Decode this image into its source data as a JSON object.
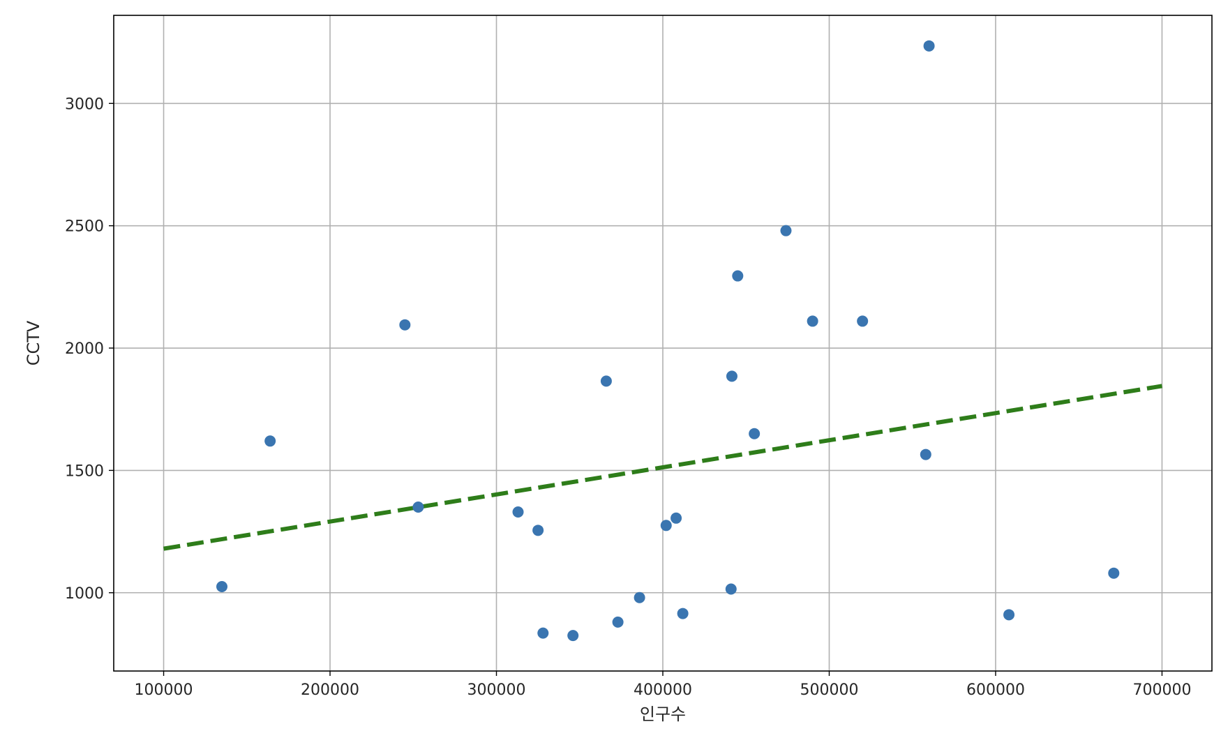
{
  "chart_data": {
    "type": "scatter",
    "title": "",
    "xlabel": "인구수",
    "ylabel": "CCTV",
    "xlim": [
      70000,
      730000
    ],
    "ylim": [
      680,
      3360
    ],
    "xticks": [
      100000,
      200000,
      300000,
      400000,
      500000,
      600000,
      700000
    ],
    "yticks": [
      1000,
      1500,
      2000,
      2500,
      3000
    ],
    "xtick_labels": [
      "100000",
      "200000",
      "300000",
      "400000",
      "500000",
      "600000",
      "700000"
    ],
    "ytick_labels": [
      "1000",
      "1500",
      "2000",
      "2500",
      "3000"
    ],
    "grid": true,
    "legend": false,
    "series": [
      {
        "kind": "scatter",
        "color": "#3a75b0",
        "points": [
          {
            "x": 135000,
            "y": 1025
          },
          {
            "x": 164000,
            "y": 1620
          },
          {
            "x": 245000,
            "y": 2095
          },
          {
            "x": 253000,
            "y": 1350
          },
          {
            "x": 313000,
            "y": 1330
          },
          {
            "x": 325000,
            "y": 1255
          },
          {
            "x": 328000,
            "y": 835
          },
          {
            "x": 346000,
            "y": 825
          },
          {
            "x": 366000,
            "y": 1865
          },
          {
            "x": 373000,
            "y": 880
          },
          {
            "x": 386000,
            "y": 980
          },
          {
            "x": 402000,
            "y": 1275
          },
          {
            "x": 408000,
            "y": 1305
          },
          {
            "x": 412000,
            "y": 915
          },
          {
            "x": 441000,
            "y": 1015
          },
          {
            "x": 441500,
            "y": 1885
          },
          {
            "x": 445000,
            "y": 2295
          },
          {
            "x": 455000,
            "y": 1650
          },
          {
            "x": 474000,
            "y": 2480
          },
          {
            "x": 490000,
            "y": 2110
          },
          {
            "x": 520000,
            "y": 2110
          },
          {
            "x": 558000,
            "y": 1565
          },
          {
            "x": 560000,
            "y": 3235
          },
          {
            "x": 608000,
            "y": 910
          },
          {
            "x": 671000,
            "y": 1080
          }
        ]
      },
      {
        "kind": "trend-line",
        "style": "dashed",
        "color": "#2e7d1a",
        "points": [
          {
            "x": 100000,
            "y": 1180
          },
          {
            "x": 700000,
            "y": 1845
          }
        ]
      }
    ]
  }
}
